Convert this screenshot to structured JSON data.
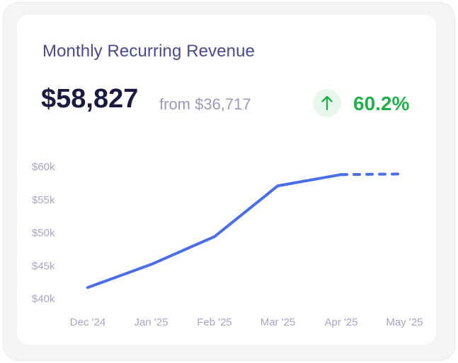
{
  "card": {
    "title": "Monthly Recurring Revenue",
    "value": "$58,827",
    "from": "from $36,717",
    "change": "60.2%",
    "change_icon": "arrow-up-icon",
    "colors": {
      "title": "#4a4a8a",
      "value": "#1a1a3e",
      "positive": "#22b04b",
      "line": "#4a6ee8"
    }
  },
  "chart_data": {
    "type": "line",
    "categories": [
      "Dec '24",
      "Jan '25",
      "Feb '25",
      "Mar '25",
      "Apr '25",
      "May '25"
    ],
    "series": [
      {
        "values": [
          41700,
          45200,
          49400,
          57100,
          58800,
          null
        ],
        "style": "solid"
      },
      {
        "values": [
          null,
          null,
          null,
          null,
          58800,
          58900
        ],
        "style": "dashed"
      }
    ],
    "y_ticks": [
      "$60k",
      "$55k",
      "$50k",
      "$45k",
      "$40k"
    ],
    "y_tick_values": [
      60000,
      55000,
      50000,
      45000,
      40000
    ],
    "ylim": [
      40000,
      60000
    ],
    "grid": false,
    "legend": "none"
  }
}
